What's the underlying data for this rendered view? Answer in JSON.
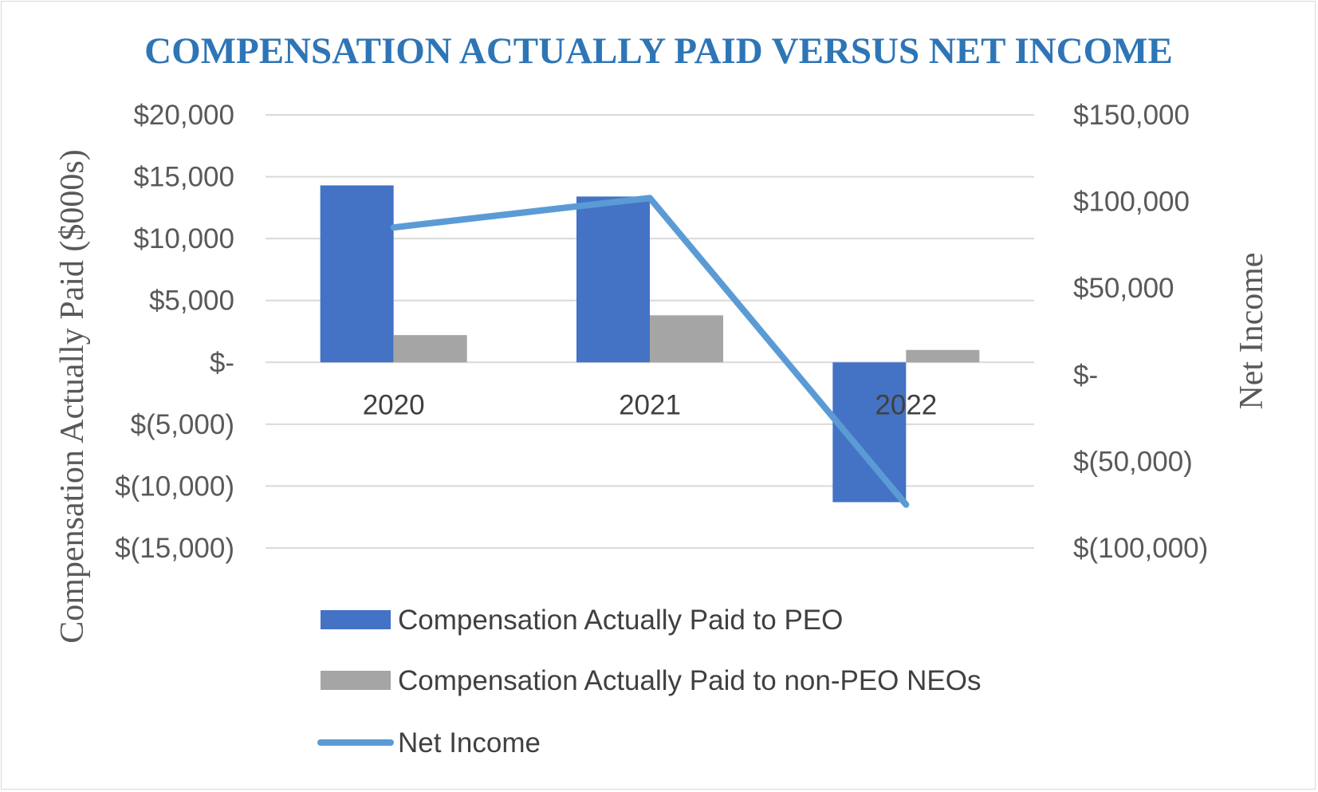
{
  "chart_data": {
    "type": "bar",
    "title": "COMPENSATION ACTUALLY PAID VERSUS NET INCOME",
    "categories": [
      "2020",
      "2021",
      "2022"
    ],
    "ylabel": "Compensation Actually Paid ($000s)",
    "y2label": "Net Income",
    "ylim": [
      -15000,
      20000
    ],
    "y2lim": [
      -100000,
      150000
    ],
    "y_ticks": [
      20000,
      15000,
      10000,
      5000,
      0,
      -5000,
      -10000,
      -15000
    ],
    "y_tick_labels": [
      "$20,000",
      "$15,000",
      "$10,000",
      "$5,000",
      "$-",
      "$(5,000)",
      "$(10,000)",
      "$(15,000)"
    ],
    "y2_ticks": [
      150000,
      100000,
      50000,
      0,
      -50000,
      -100000
    ],
    "y2_tick_labels": [
      "$150,000",
      "$100,000",
      "$50,000",
      "$-",
      "$(50,000)",
      "$(100,000)"
    ],
    "grid": true,
    "legend_position": "bottom",
    "series": [
      {
        "name": "Compensation Actually Paid to PEO",
        "type": "bar",
        "axis": "left",
        "color": "#4472c4",
        "values": [
          14300,
          13400,
          -11300
        ]
      },
      {
        "name": "Compensation Actually Paid to non-PEO NEOs",
        "type": "bar",
        "axis": "left",
        "color": "#a5a5a5",
        "values": [
          2200,
          3800,
          1000
        ]
      },
      {
        "name": "Net Income",
        "type": "line",
        "axis": "right",
        "color": "#5b9bd5",
        "values": [
          85000,
          102000,
          -75000
        ]
      }
    ]
  }
}
